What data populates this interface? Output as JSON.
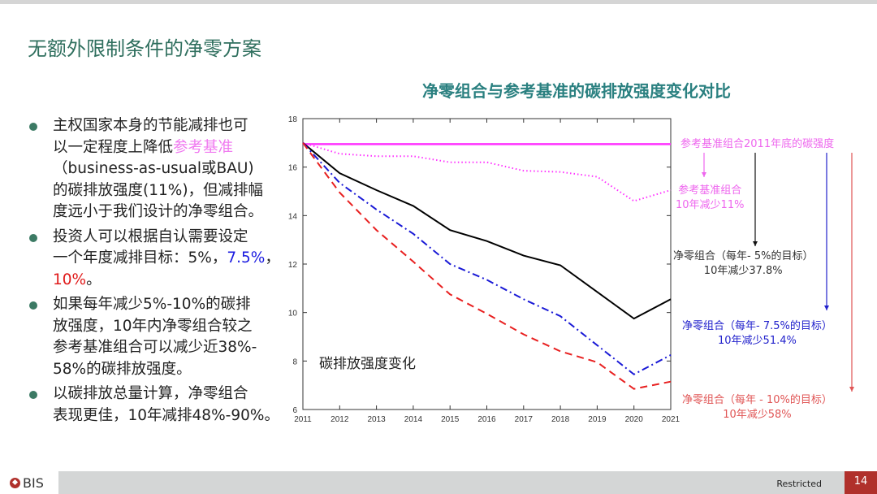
{
  "slide_title": "无额外限制条件的净零方案",
  "bullets": [
    {
      "segments": [
        {
          "text": "主权国家本身的节能减排也可\n以一定程度上降低",
          "color": "#222222"
        },
        {
          "text": "参考基准",
          "color": "#f07af0"
        },
        {
          "text": "\n（business-as-usual或BAU)\n的碳排放强度(11%)，但减排幅\n度远小于我们设计的净零组合。",
          "color": "#222222"
        }
      ]
    },
    {
      "segments": [
        {
          "text": "投资人可以根据自认需要设定\n一个年度减排目标：5%，",
          "color": "#222222"
        },
        {
          "text": "7.5%",
          "color": "#1a1ae0"
        },
        {
          "text": "，\n",
          "color": "#222222"
        },
        {
          "text": "10%",
          "color": "#e01a1a"
        },
        {
          "text": "。",
          "color": "#222222"
        }
      ]
    },
    {
      "segments": [
        {
          "text": "如果每年减少5%-10%的碳排\n放强度，10年内净零组合较之\n参考基准组合可以减少近38%-\n58%的碳排放强度。",
          "color": "#222222"
        }
      ]
    },
    {
      "segments": [
        {
          "text": "以碳排放总量计算，净零组合\n表现更佳，10年减排48%-90%。",
          "color": "#222222"
        }
      ]
    }
  ],
  "chart_data": {
    "type": "line",
    "title": "净零组合与参考基准的碳排放强度变化对比",
    "inner_label": "碳排放强度变化",
    "x": [
      2011,
      2012,
      2013,
      2014,
      2015,
      2016,
      2017,
      2018,
      2019,
      2020,
      2021
    ],
    "xticks": [
      "2011",
      "2012",
      "2013",
      "2014",
      "2015",
      "2016",
      "2017",
      "2018",
      "2019",
      "2020",
      "2021"
    ],
    "yticks": [
      "6",
      "8",
      "10",
      "12",
      "14",
      "16",
      "18"
    ],
    "ylim": [
      6,
      18
    ],
    "xlabel": "",
    "ylabel": "",
    "series": [
      {
        "name": "参考基准组合2011年底的碳强度",
        "color": "#ff33ff",
        "style": "solid",
        "values": [
          16.95,
          16.95,
          16.95,
          16.95,
          16.95,
          16.95,
          16.95,
          16.95,
          16.95,
          16.95,
          16.95
        ]
      },
      {
        "name": "参考基准组合",
        "color": "#ff33ff",
        "style": "dotted",
        "values": [
          17.0,
          16.55,
          16.45,
          16.45,
          16.2,
          16.2,
          15.85,
          15.8,
          15.6,
          14.6,
          15.05
        ]
      },
      {
        "name": "净零组合（每年-5%的目标）",
        "color": "#000000",
        "style": "solid",
        "values": [
          17.0,
          15.75,
          15.05,
          14.4,
          13.4,
          12.95,
          12.35,
          11.95,
          10.85,
          9.75,
          10.55
        ]
      },
      {
        "name": "净零组合（每年-7.5%的目标）",
        "color": "#1a1ad6",
        "style": "dashdot",
        "values": [
          17.0,
          15.35,
          14.25,
          13.25,
          12.0,
          11.35,
          10.55,
          9.85,
          8.65,
          7.45,
          8.25
        ]
      },
      {
        "name": "净零组合（每年-10%的目标）",
        "color": "#e82020",
        "style": "dashed",
        "values": [
          17.0,
          14.95,
          13.4,
          12.1,
          10.75,
          9.95,
          9.1,
          8.4,
          7.95,
          6.85,
          7.15
        ]
      }
    ],
    "annotations": [
      {
        "line1": "参考基准组合2011年底的碳强度",
        "line2": "",
        "color": "#ee66ee"
      },
      {
        "line1": "参考基准组合",
        "line2": "10年减少11%",
        "color": "#ee66ee"
      },
      {
        "line1": "净零组合（每年- 5%的目标）",
        "line2": "10年减少37.8%",
        "color": "#333333"
      },
      {
        "line1": "净零组合（每年- 7.5%的目标）",
        "line2": "10年减少51.4%",
        "color": "#2222cc"
      },
      {
        "line1": "净零组合（每年 - 10%的目标）",
        "line2": "10年减少58%",
        "color": "#e05555"
      }
    ]
  },
  "footer": {
    "logo": "BIS",
    "classification": "Restricted",
    "page_number": "14"
  }
}
